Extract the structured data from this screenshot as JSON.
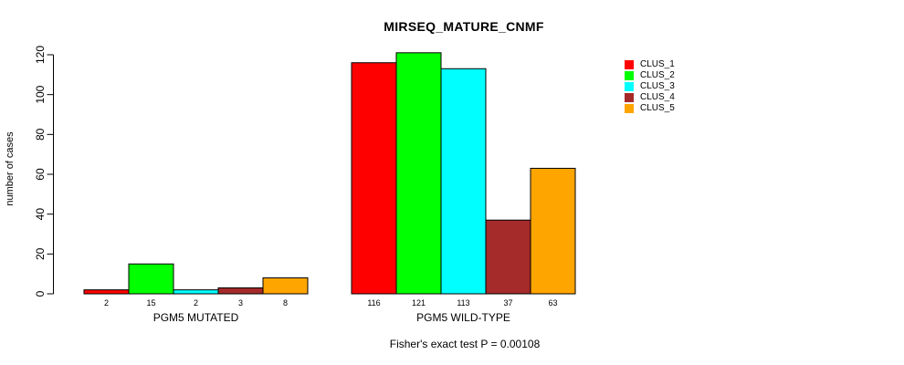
{
  "chart_data": {
    "type": "bar",
    "title": "MIRSEQ_MATURE_CNMF",
    "ylabel": "number of cases",
    "xlabel": "",
    "annotation": "Fisher's exact test P = 0.00108",
    "categories": [
      "PGM5 MUTATED",
      "PGM5 WILD-TYPE"
    ],
    "series": [
      {
        "name": "CLUS_1",
        "color": "#FF0000",
        "values": [
          2,
          116
        ]
      },
      {
        "name": "CLUS_2",
        "color": "#00FF00",
        "values": [
          15,
          121
        ]
      },
      {
        "name": "CLUS_3",
        "color": "#00FFFF",
        "values": [
          2,
          113
        ]
      },
      {
        "name": "CLUS_4",
        "color": "#A52A2A",
        "values": [
          3,
          37
        ]
      },
      {
        "name": "CLUS_5",
        "color": "#FFA500",
        "values": [
          8,
          63
        ]
      }
    ],
    "yticks": [
      0,
      20,
      40,
      60,
      80,
      100,
      120
    ],
    "ylim": [
      0,
      125
    ],
    "bar_value_labels": true,
    "legend_position": "right",
    "grid": false,
    "background": "#FFFFFF",
    "bar_border_color": "#000000",
    "axis_color": "#000000"
  }
}
